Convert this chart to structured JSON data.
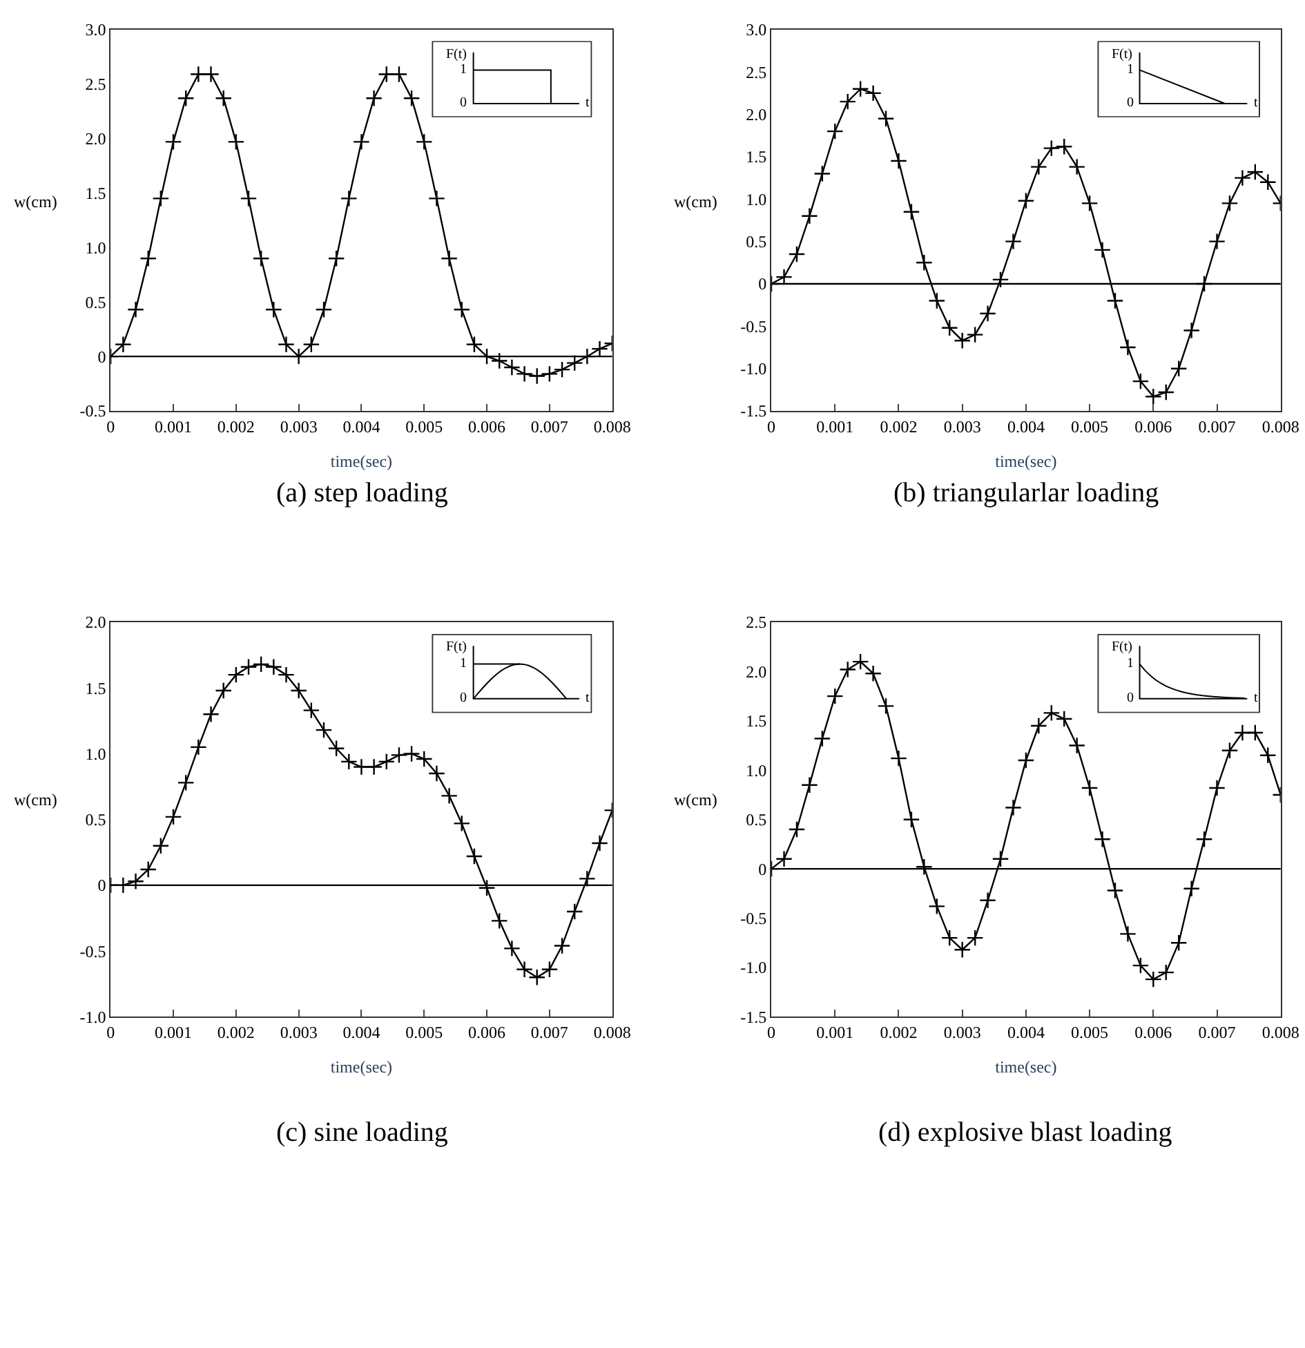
{
  "chart_data": [
    {
      "type": "line",
      "title": "(a) step loading",
      "xlabel": "time(sec)",
      "ylabel": "w(cm)",
      "annotations": [
        "F(t)",
        "1",
        "0",
        "t"
      ],
      "x": [
        0,
        0.0002,
        0.0004,
        0.0006,
        0.0008,
        0.001,
        0.0012,
        0.0014,
        0.0016,
        0.0018,
        0.002,
        0.0022,
        0.0024,
        0.0026,
        0.0028,
        0.003,
        0.0032,
        0.0034,
        0.0036,
        0.0038,
        0.004,
        0.0042,
        0.0044,
        0.0046,
        0.0048,
        0.005,
        0.0052,
        0.0054,
        0.0056,
        0.0058,
        0.006,
        0.0062,
        0.0064,
        0.0066,
        0.0068,
        0.007,
        0.0072,
        0.0074,
        0.0076,
        0.0078,
        0.008
      ],
      "series": [
        {
          "color": "#000000",
          "values": [
            0,
            0.11,
            0.43,
            0.9,
            1.45,
            1.97,
            2.37,
            2.59,
            2.59,
            2.37,
            1.97,
            1.45,
            0.9,
            0.43,
            0.11,
            0,
            0.11,
            0.43,
            0.9,
            1.45,
            1.97,
            2.37,
            2.59,
            2.59,
            2.37,
            1.97,
            1.45,
            0.9,
            0.43,
            0.11,
            0,
            -0.04,
            -0.1,
            -0.16,
            -0.18,
            -0.16,
            -0.12,
            -0.06,
            0,
            0.07,
            0.12
          ]
        }
      ],
      "xlim": [
        0,
        0.008
      ],
      "xticks": [
        0,
        0.001,
        0.002,
        0.003,
        0.004,
        0.005,
        0.006,
        0.007,
        0.008
      ],
      "ylim": [
        -0.5,
        3
      ],
      "yticks": [
        {
          "value": -0.5,
          "label": "-0.5"
        },
        0,
        {
          "value": 0.5,
          "label": "0.5"
        },
        {
          "value": 1,
          "label": "1.0"
        },
        {
          "value": 1.5,
          "label": "1.5"
        },
        {
          "value": 2,
          "label": "2.0"
        },
        {
          "value": 2.5,
          "label": "2.5"
        },
        {
          "value": 3,
          "label": "3.0"
        }
      ],
      "ref_lines": [
        {
          "axis": "y",
          "value": 0,
          "color": "#000000"
        }
      ],
      "marker": "cross",
      "line_style": "solid"
    },
    {
      "type": "line",
      "title": "(b) triangularlar loading",
      "xlabel": "time(sec)",
      "ylabel": "w(cm)",
      "annotations": [
        "F(t)",
        "1",
        "0",
        "t"
      ],
      "x": [
        0,
        0.0002,
        0.0004,
        0.0006,
        0.0008,
        0.001,
        0.0012,
        0.0014,
        0.0016,
        0.0018,
        0.002,
        0.0022,
        0.0024,
        0.0026,
        0.0028,
        0.003,
        0.0032,
        0.0034,
        0.0036,
        0.0038,
        0.004,
        0.0042,
        0.0044,
        0.0046,
        0.0048,
        0.005,
        0.0052,
        0.0054,
        0.0056,
        0.0058,
        0.006,
        0.0062,
        0.0064,
        0.0066,
        0.0068,
        0.007,
        0.0072,
        0.0074,
        0.0076,
        0.0078,
        0.008
      ],
      "series": [
        {
          "color": "#000000",
          "values": [
            0,
            0.08,
            0.35,
            0.8,
            1.3,
            1.8,
            2.15,
            2.3,
            2.25,
            1.95,
            1.45,
            0.85,
            0.25,
            -0.2,
            -0.52,
            -0.67,
            -0.6,
            -0.35,
            0.05,
            0.5,
            0.98,
            1.38,
            1.6,
            1.62,
            1.38,
            0.95,
            0.4,
            -0.2,
            -0.75,
            -1.15,
            -1.33,
            -1.28,
            -1,
            -0.55,
            0,
            0.5,
            0.95,
            1.25,
            1.32,
            1.2,
            0.95
          ]
        }
      ],
      "xlim": [
        0,
        0.008
      ],
      "xticks": [
        0,
        0.001,
        0.002,
        0.003,
        0.004,
        0.005,
        0.006,
        0.007,
        0.008
      ],
      "ylim": [
        -1.5,
        3
      ],
      "yticks": [
        {
          "value": -1.5,
          "label": "-1.5"
        },
        {
          "value": -1,
          "label": "-1.0"
        },
        {
          "value": -0.5,
          "label": "-0.5"
        },
        0,
        {
          "value": 0.5,
          "label": "0.5"
        },
        {
          "value": 1,
          "label": "1.0"
        },
        {
          "value": 1.5,
          "label": "1.5"
        },
        {
          "value": 2,
          "label": "2.0"
        },
        {
          "value": 2.5,
          "label": "2.5"
        },
        {
          "value": 3,
          "label": "3.0"
        }
      ],
      "ref_lines": [
        {
          "axis": "y",
          "value": 0,
          "color": "#000000"
        }
      ],
      "marker": "cross",
      "line_style": "solid"
    },
    {
      "type": "line",
      "title": "(c) sine loading",
      "xlabel": "time(sec)",
      "ylabel": "w(cm)",
      "annotations": [
        "F(t)",
        "1",
        "0",
        "t"
      ],
      "x": [
        0,
        0.0002,
        0.0004,
        0.0006,
        0.0008,
        0.001,
        0.0012,
        0.0014,
        0.0016,
        0.0018,
        0.002,
        0.0022,
        0.0024,
        0.0026,
        0.0028,
        0.003,
        0.0032,
        0.0034,
        0.0036,
        0.0038,
        0.004,
        0.0042,
        0.0044,
        0.0046,
        0.0048,
        0.005,
        0.0052,
        0.0054,
        0.0056,
        0.0058,
        0.006,
        0.0062,
        0.0064,
        0.0066,
        0.0068,
        0.007,
        0.0072,
        0.0074,
        0.0076,
        0.0078,
        0.008
      ],
      "series": [
        {
          "color": "#000000",
          "values": [
            0,
            0,
            0.03,
            0.12,
            0.3,
            0.52,
            0.78,
            1.05,
            1.3,
            1.48,
            1.6,
            1.66,
            1.68,
            1.66,
            1.6,
            1.48,
            1.33,
            1.18,
            1.04,
            0.94,
            0.9,
            0.9,
            0.94,
            0.99,
            1,
            0.96,
            0.85,
            0.68,
            0.47,
            0.22,
            -0.02,
            -0.27,
            -0.48,
            -0.64,
            -0.7,
            -0.64,
            -0.46,
            -0.2,
            0.05,
            0.32,
            0.57
          ]
        }
      ],
      "xlim": [
        0,
        0.008
      ],
      "xticks": [
        0,
        0.001,
        0.002,
        0.003,
        0.004,
        0.005,
        0.006,
        0.007,
        0.008
      ],
      "ylim": [
        -1,
        2
      ],
      "yticks": [
        {
          "value": -1,
          "label": "-1.0"
        },
        {
          "value": -0.5,
          "label": "-0.5"
        },
        0,
        {
          "value": 0.5,
          "label": "0.5"
        },
        {
          "value": 1,
          "label": "1.0"
        },
        {
          "value": 1.5,
          "label": "1.5"
        },
        {
          "value": 2,
          "label": "2.0"
        }
      ],
      "ref_lines": [
        {
          "axis": "y",
          "value": 0,
          "color": "#000000"
        }
      ],
      "marker": "cross",
      "line_style": "solid"
    },
    {
      "type": "line",
      "title": "(d) explosive blast loading",
      "xlabel": "time(sec)",
      "ylabel": "w(cm)",
      "annotations": [
        "F(t)",
        "1",
        "0",
        "t"
      ],
      "x": [
        0,
        0.0002,
        0.0004,
        0.0006,
        0.0008,
        0.001,
        0.0012,
        0.0014,
        0.0016,
        0.0018,
        0.002,
        0.0022,
        0.0024,
        0.0026,
        0.0028,
        0.003,
        0.0032,
        0.0034,
        0.0036,
        0.0038,
        0.004,
        0.0042,
        0.0044,
        0.0046,
        0.0048,
        0.005,
        0.0052,
        0.0054,
        0.0056,
        0.0058,
        0.006,
        0.0062,
        0.0064,
        0.0066,
        0.0068,
        0.007,
        0.0072,
        0.0074,
        0.0076,
        0.0078,
        0.008
      ],
      "series": [
        {
          "color": "#000000",
          "values": [
            0,
            0.1,
            0.4,
            0.85,
            1.32,
            1.75,
            2.02,
            2.1,
            1.98,
            1.65,
            1.12,
            0.5,
            0.02,
            -0.38,
            -0.7,
            -0.82,
            -0.7,
            -0.32,
            0.1,
            0.62,
            1.1,
            1.45,
            1.58,
            1.52,
            1.25,
            0.82,
            0.3,
            -0.22,
            -0.66,
            -0.98,
            -1.12,
            -1.05,
            -0.75,
            -0.2,
            0.3,
            0.82,
            1.2,
            1.38,
            1.38,
            1.15,
            0.75
          ]
        }
      ],
      "xlim": [
        0,
        0.008
      ],
      "xticks": [
        0,
        0.001,
        0.002,
        0.003,
        0.004,
        0.005,
        0.006,
        0.007,
        0.008
      ],
      "ylim": [
        -1.5,
        2.5
      ],
      "yticks": [
        {
          "value": -1.5,
          "label": "-1.5"
        },
        {
          "value": -1,
          "label": "-1.0"
        },
        {
          "value": -0.5,
          "label": "-0.5"
        },
        0,
        {
          "value": 0.5,
          "label": "0.5"
        },
        {
          "value": 1,
          "label": "1.0"
        },
        {
          "value": 1.5,
          "label": "1.5"
        },
        {
          "value": 2,
          "label": "2.0"
        },
        {
          "value": 2.5,
          "label": "2.5"
        }
      ],
      "ref_lines": [
        {
          "axis": "y",
          "value": 0,
          "color": "#000000"
        }
      ],
      "marker": "cross",
      "line_style": "solid"
    }
  ]
}
